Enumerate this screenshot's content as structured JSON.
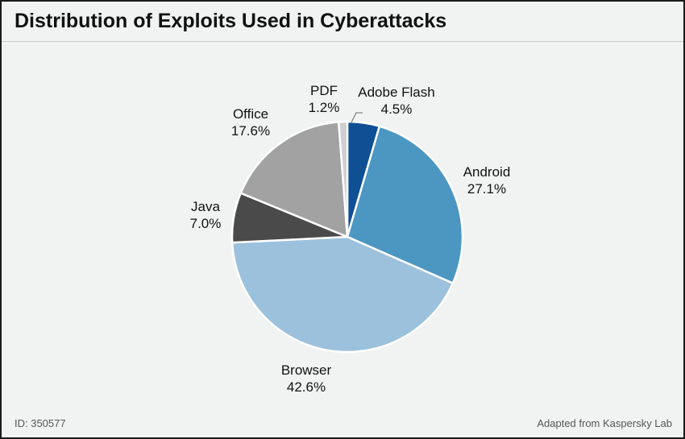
{
  "chart_data": {
    "type": "pie",
    "title": "Distribution of Exploits Used in Cyberattacks",
    "slices": [
      {
        "name": "Adobe Flash",
        "value": 4.5,
        "label": "4.5%",
        "color": "#0f4f94"
      },
      {
        "name": "Android",
        "value": 27.1,
        "label": "27.1%",
        "color": "#4c96c2"
      },
      {
        "name": "Browser",
        "value": 42.6,
        "label": "42.6%",
        "color": "#9cc1dd"
      },
      {
        "name": "Java",
        "value": 7.0,
        "label": "7.0%",
        "color": "#4a4a4a"
      },
      {
        "name": "Office",
        "value": 17.6,
        "label": "17.6%",
        "color": "#a2a2a2"
      },
      {
        "name": "PDF",
        "value": 1.2,
        "label": "1.2%",
        "color": "#cfcfcf"
      }
    ],
    "start_angle_deg": 0,
    "direction": "clockwise"
  },
  "footer": {
    "id": "ID: 350577",
    "source": "Adapted from Kaspersky Lab"
  }
}
